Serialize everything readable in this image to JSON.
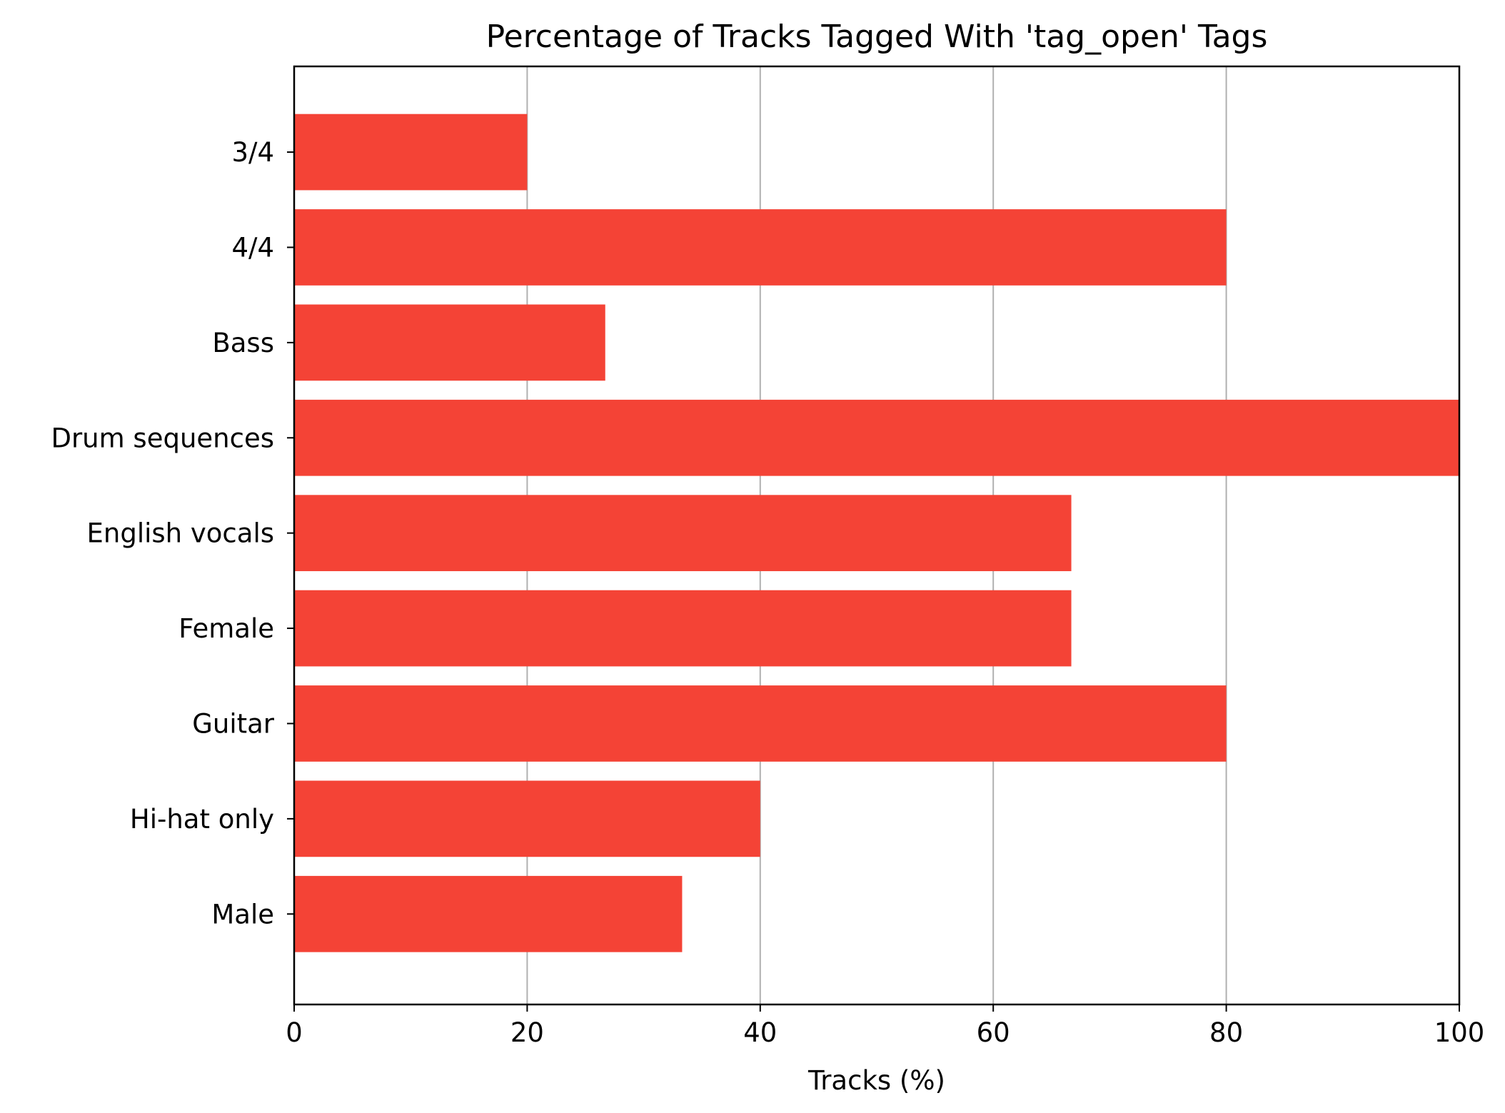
{
  "chart_data": {
    "type": "bar",
    "orientation": "horizontal",
    "title": "Percentage of Tracks Tagged With 'tag_open' Tags",
    "xlabel": "Tracks (%)",
    "ylabel": "",
    "xlim": [
      0,
      100
    ],
    "xticks": [
      "0",
      "20",
      "40",
      "60",
      "80",
      "100"
    ],
    "categories": [
      "3/4",
      "4/4",
      "Bass",
      "Drum sequences",
      "English vocals",
      "Female",
      "Guitar",
      "Hi-hat only",
      "Male"
    ],
    "values": [
      20,
      80,
      26.7,
      100,
      66.7,
      66.7,
      80,
      40,
      33.3
    ],
    "bar_color": "#f44336",
    "grid": "vertical",
    "grid_color": "#b0b0b0"
  }
}
